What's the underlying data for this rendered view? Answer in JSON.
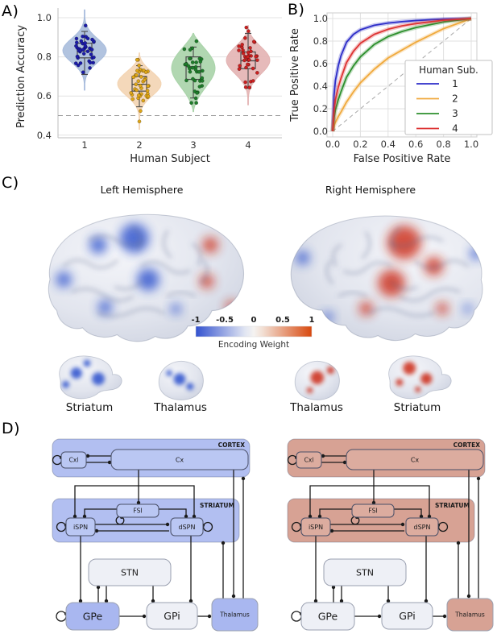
{
  "panel_labels": {
    "a": "A)",
    "b": "B)",
    "c": "C)",
    "d": "D)"
  },
  "chart_data": [
    {
      "type": "violin",
      "title": "",
      "xlabel": "Human Subject",
      "ylabel": "Prediction Accuracy",
      "categories": [
        "1",
        "2",
        "3",
        "4"
      ],
      "yticks": [
        0.4,
        0.6,
        0.8,
        1.0
      ],
      "ylim": [
        0.38,
        1.05
      ],
      "chance_level": 0.5,
      "grid": "horizontal",
      "series": [
        {
          "subject": "1",
          "violin_fill": "#a8bcdc",
          "point_color": "#1b1baa",
          "median": 0.83,
          "q1": 0.795,
          "q3": 0.87,
          "whisker_low": 0.71,
          "whisker_high": 0.93,
          "min": 0.63,
          "max": 1.04,
          "n_points": 40,
          "outliers": []
        },
        {
          "subject": "2",
          "violin_fill": "#f3d4b2",
          "point_color": "#dfa616",
          "median": 0.66,
          "q1": 0.625,
          "q3": 0.7,
          "whisker_low": 0.545,
          "whisker_high": 0.755,
          "min": 0.43,
          "max": 0.82,
          "n_points": 40,
          "outliers": [
            0.47
          ]
        },
        {
          "subject": "3",
          "violin_fill": "#a9d3a9",
          "point_color": "#1e7d2a",
          "median": 0.75,
          "q1": 0.685,
          "q3": 0.8,
          "whisker_low": 0.59,
          "whisker_high": 0.85,
          "min": 0.52,
          "max": 0.92,
          "n_points": 38,
          "outliers": []
        },
        {
          "subject": "4",
          "violin_fill": "#e3b3b2",
          "point_color": "#cb2020",
          "median": 0.78,
          "q1": 0.74,
          "q3": 0.825,
          "whisker_low": 0.64,
          "whisker_high": 0.92,
          "min": 0.555,
          "max": 0.96,
          "n_points": 38,
          "outliers": []
        }
      ]
    },
    {
      "type": "line",
      "title": "",
      "xlabel": "False Positive Rate",
      "ylabel": "True Positive Rate",
      "xticks": [
        0.0,
        0.2,
        0.4,
        0.6,
        0.8,
        1.0
      ],
      "yticks": [
        0.0,
        0.2,
        0.4,
        0.6,
        0.8,
        1.0
      ],
      "xlim": [
        0,
        1
      ],
      "ylim": [
        0,
        1
      ],
      "grid": true,
      "diagonal_reference": true,
      "legend_title": "Human Sub.",
      "legend_position": "lower right",
      "x": [
        0,
        0.01,
        0.02,
        0.04,
        0.06,
        0.1,
        0.15,
        0.2,
        0.3,
        0.4,
        0.5,
        0.6,
        0.8,
        1.0
      ],
      "series": [
        {
          "name": "1",
          "color": "#2d2dc8",
          "y": [
            0,
            0.32,
            0.45,
            0.58,
            0.67,
            0.79,
            0.86,
            0.9,
            0.94,
            0.96,
            0.972,
            0.982,
            0.995,
            1.0
          ]
        },
        {
          "name": "2",
          "color": "#f0a93c",
          "y": [
            0,
            0.05,
            0.08,
            0.13,
            0.17,
            0.26,
            0.35,
            0.43,
            0.55,
            0.65,
            0.72,
            0.79,
            0.91,
            1.0
          ]
        },
        {
          "name": "3",
          "color": "#2d8f2d",
          "y": [
            0,
            0.12,
            0.19,
            0.28,
            0.35,
            0.48,
            0.58,
            0.66,
            0.77,
            0.84,
            0.885,
            0.92,
            0.97,
            1.0
          ]
        },
        {
          "name": "4",
          "color": "#dd3333",
          "y": [
            0,
            0.18,
            0.28,
            0.39,
            0.47,
            0.61,
            0.71,
            0.78,
            0.86,
            0.905,
            0.935,
            0.955,
            0.985,
            1.0
          ]
        }
      ]
    }
  ],
  "panel_c": {
    "left_title": "Left Hemisphere",
    "right_title": "Right Hemisphere",
    "colorbar": {
      "ticks": [
        "-1",
        "-0.5",
        "0",
        "0.5",
        "1"
      ],
      "label": "Encoding Weight",
      "min_color": "#3352cf",
      "mid_color": "#f5f3f1",
      "max_color": "#d8490f"
    },
    "negative_color": "#2b50cc",
    "positive_color": "#cc2b14",
    "subcortical_labels": [
      "Striatum",
      "Thalamus",
      "Thalamus",
      "Striatum"
    ]
  },
  "panel_d": {
    "regions": {
      "cortex": "CORTEX",
      "striatum": "STRIATUM"
    },
    "nodes": {
      "cxl": "Cxl",
      "cx": "Cx",
      "fsi": "FSI",
      "ispn": "iSPN",
      "dspn": "dSPN",
      "stn": "STN",
      "gpe": "GPe",
      "gpi": "GPi",
      "thalamus": "Thalamus"
    },
    "schemes": [
      {
        "name": "left-blue",
        "region_fill": "#b2bff1",
        "inner_fill": "#bac7f3",
        "accent_fill": "#a9b7f0",
        "neutral_fill": "#eef0f6",
        "gpe_accent": true
      },
      {
        "name": "right-red",
        "region_fill": "#d7a294",
        "inner_fill": "#dcac9f",
        "accent_fill": "#d7a294",
        "neutral_fill": "#eef0f6",
        "gpe_accent": false
      }
    ]
  }
}
